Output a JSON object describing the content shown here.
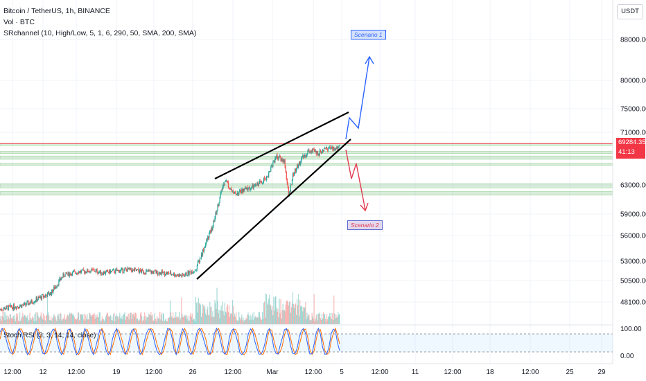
{
  "legend": {
    "title": "Bitcoin / TetherUS, 1h, BINANCE",
    "volume": "Vol · BTC",
    "indicator": "SRchannel (10, High/Low, 5, 1, 6, 290, 50, SMA, 200, SMA)",
    "rsi": "Stoch RSI (3, 3, 14, 14, close)"
  },
  "currency_button": "USDT",
  "last_price": {
    "value": "69284.35",
    "countdown": "41:13"
  },
  "annotations": {
    "scenario1": "Scenario 1",
    "scenario2": "Scenario 2"
  },
  "colors": {
    "up": "#26a69a",
    "down": "#ef5350",
    "sr_zone": "#4caf50",
    "scenario1": "#2962ff",
    "scenario2": "#e53950"
  },
  "chart_data": {
    "type": "candlestick",
    "symbol": "BTCUSDT",
    "interval": "1h",
    "y_axis": {
      "ticks": [
        48100,
        50500,
        53000,
        56000,
        59000,
        63000,
        71000,
        75000,
        80000,
        88000
      ],
      "ylim": [
        46500,
        95000
      ]
    },
    "x_axis": {
      "ticks": [
        "12:00",
        "12",
        "12:00",
        "19",
        "12:00",
        "26",
        "12:00",
        "Mar",
        "12:00",
        "5",
        "12:00",
        "11",
        "12:00",
        "18",
        "12:00",
        "25",
        "29"
      ]
    },
    "price_path": [
      {
        "x": 0,
        "price": 47300
      },
      {
        "x": 6,
        "price": 47800
      },
      {
        "x": 10,
        "price": 48700
      },
      {
        "x": 12,
        "price": 49100
      },
      {
        "x": 15,
        "price": 51200
      },
      {
        "x": 18,
        "price": 51600
      },
      {
        "x": 22,
        "price": 51800
      },
      {
        "x": 24,
        "price": 51500
      },
      {
        "x": 30,
        "price": 51900
      },
      {
        "x": 33,
        "price": 51700
      },
      {
        "x": 40,
        "price": 51400
      },
      {
        "x": 43,
        "price": 51100
      },
      {
        "x": 46,
        "price": 51900
      },
      {
        "x": 48,
        "price": 54500
      },
      {
        "x": 50,
        "price": 57100
      },
      {
        "x": 52,
        "price": 61800
      },
      {
        "x": 53,
        "price": 63900
      },
      {
        "x": 55,
        "price": 61700
      },
      {
        "x": 58,
        "price": 62400
      },
      {
        "x": 60,
        "price": 62800
      },
      {
        "x": 63,
        "price": 64300
      },
      {
        "x": 65,
        "price": 67400
      },
      {
        "x": 67,
        "price": 66600
      },
      {
        "x": 68,
        "price": 61400
      },
      {
        "x": 69,
        "price": 64500
      },
      {
        "x": 71,
        "price": 66900
      },
      {
        "x": 73,
        "price": 68300
      },
      {
        "x": 75,
        "price": 67800
      },
      {
        "x": 77,
        "price": 68700
      },
      {
        "x": 79,
        "price": 68400
      },
      {
        "x": 80,
        "price": 69300
      }
    ],
    "sr_zones": [
      [
        66000,
        66300
      ],
      [
        66900,
        67400
      ],
      [
        67800,
        68100
      ],
      [
        69100,
        69300
      ],
      [
        62600,
        63200
      ],
      [
        61600,
        62100
      ]
    ],
    "trendlines": [
      {
        "from": [
          46,
          51200
        ],
        "to": [
          83,
          69600
        ]
      },
      {
        "from": [
          51,
          63900
        ],
        "to": [
          83,
          73900
        ]
      }
    ],
    "scenarios": [
      {
        "name": "Scenario 1",
        "path": [
          [
            83,
            69600
          ],
          [
            85,
            72100
          ],
          [
            88,
            84300
          ]
        ]
      },
      {
        "name": "Scenario 2",
        "path": [
          [
            83,
            66500
          ],
          [
            85,
            65300
          ],
          [
            88,
            58800
          ]
        ]
      }
    ],
    "stoch_rsi": {
      "levels": [
        0,
        20,
        80,
        100
      ],
      "ticks": [
        0,
        100
      ]
    }
  }
}
